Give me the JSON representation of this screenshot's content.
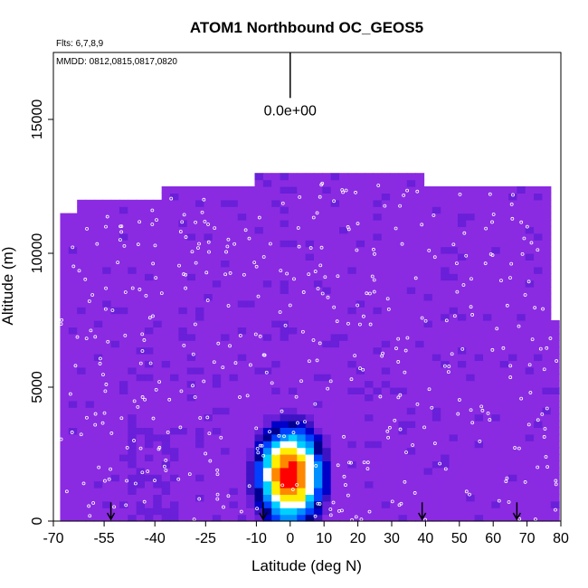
{
  "chart_data": {
    "type": "heatmap",
    "title": "ATOM1 Northbound OC_GEOS5",
    "notes": [
      "Flts: 6,7,8,9",
      "MMDD: 0812,0815,0817,0820"
    ],
    "xlabel": "Latitude (deg N)",
    "ylabel": "Altitude (m)",
    "xlim": [
      -70,
      80
    ],
    "ylim": [
      0,
      17500
    ],
    "x_ticks": [
      -70,
      -55,
      -40,
      -25,
      -10,
      0,
      10,
      20,
      30,
      40,
      50,
      60,
      70,
      80
    ],
    "x_tick_labels": [
      "-70",
      "-55",
      "-40",
      "-25",
      "-10",
      "0",
      "10",
      "20",
      "30",
      "40",
      "50",
      "60",
      "70",
      "80"
    ],
    "y_ticks": [
      0,
      5000,
      10000,
      15000
    ],
    "y_tick_labels": [
      "0",
      "5000",
      "10000",
      "15000"
    ],
    "scale_label": "0.0e+00",
    "scale_bar": {
      "x": 0,
      "y_top": 17500,
      "y_bottom": 15800
    },
    "background_color": "#8a2be2",
    "colormap": [
      "#8a2be2",
      "#6a1fd8",
      "#3d13c4",
      "#0000c8",
      "#000090",
      "#0040ff",
      "#0090ff",
      "#00d0ff",
      "#ffffff",
      "#ffee00",
      "#ff8800",
      "#ff0000"
    ],
    "envelope": [
      {
        "x0": -68,
        "x1": -62,
        "top": 11400
      },
      {
        "x0": -62,
        "x1": -37,
        "top": 11900
      },
      {
        "x0": -37,
        "x1": -10,
        "top": 12400
      },
      {
        "x0": -10,
        "x1": 40,
        "top": 12900
      },
      {
        "x0": 40,
        "x1": 76,
        "top": 12500
      },
      {
        "x0": 76,
        "x1": 78,
        "top": 12000
      },
      {
        "x0": 78,
        "x1": 80,
        "top": 7500
      }
    ],
    "plume": {
      "x_center": 0,
      "y_center": 1700,
      "x_halfwidth": 14,
      "y_halfwidth": 2600,
      "peak_level": 11
    },
    "arrows": [
      {
        "x": -53
      },
      {
        "x": -8
      },
      {
        "x": 39
      },
      {
        "x": 67
      }
    ]
  }
}
